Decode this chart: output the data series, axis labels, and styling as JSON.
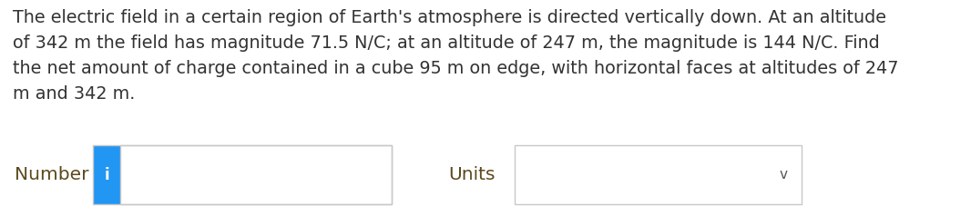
{
  "paragraph_text": "The electric field in a certain region of Earth's atmosphere is directed vertically down. At an altitude\nof 342 m the field has magnitude 71.5 N/C; at an altitude of 247 m, the magnitude is 144 N/C. Find\nthe net amount of charge contained in a cube 95 m on edge, with horizontal faces at altitudes of 247\nm and 342 m.",
  "number_label": "Number",
  "units_label": "Units",
  "background_color": "#ffffff",
  "text_color": "#333333",
  "label_color_number": "#5c4a1e",
  "label_color_units": "#5c4a1e",
  "info_button_color": "#2196f3",
  "info_button_text": "i",
  "input_box_border": "#c8c8c8",
  "dropdown_box_border": "#c8c8c8",
  "font_size_paragraph": 13.8,
  "font_size_labels": 14.5,
  "font_size_info": 12,
  "chevron": "v"
}
